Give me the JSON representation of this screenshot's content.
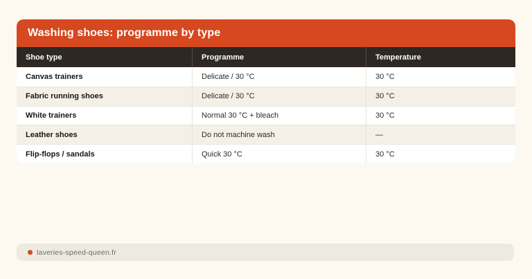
{
  "theme": {
    "accent": "#d6481f",
    "header_dark": "#2d2823",
    "page_bg": "#fdf8f0",
    "row_alt_bg": "#f4f0e7",
    "footer_bg": "#edeae1"
  },
  "card": {
    "title": "Washing shoes: programme by type"
  },
  "table": {
    "columns": [
      "Shoe type",
      "Programme",
      "Temperature"
    ],
    "rows": [
      {
        "shoe_type": "Canvas trainers",
        "programme": "Delicate / 30 °C",
        "temperature": "30 °C"
      },
      {
        "shoe_type": "Fabric running shoes",
        "programme": "Delicate / 30 °C",
        "temperature": "30 °C"
      },
      {
        "shoe_type": "White trainers",
        "programme": "Normal 30 °C + bleach",
        "temperature": "30 °C"
      },
      {
        "shoe_type": "Leather shoes",
        "programme": "Do not machine wash",
        "temperature": "—"
      },
      {
        "shoe_type": "Flip-flops / sandals",
        "programme": "Quick 30 °C",
        "temperature": "30 °C"
      }
    ]
  },
  "footer": {
    "site": "laveries-speed-queen.fr"
  }
}
